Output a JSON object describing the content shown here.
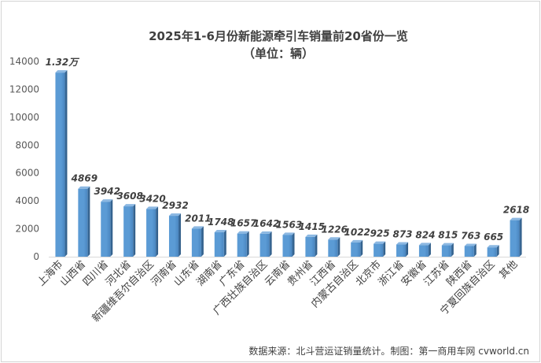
{
  "chart_data": {
    "type": "bar",
    "title": "2025年1-6月份新能源牵引车销量前20省份一览",
    "subtitle": "（单位：辆）",
    "categories": [
      "上海市",
      "山西省",
      "四川省",
      "河北省",
      "新疆维吾尔自治区",
      "河南省",
      "山东省",
      "湖南省",
      "广东省",
      "广西壮族自治区",
      "云南省",
      "贵州省",
      "江西省",
      "内蒙古自治区",
      "北京市",
      "浙江省",
      "安徽省",
      "江苏省",
      "陕西省",
      "宁夏回族自治区",
      "其他"
    ],
    "values": [
      13200,
      4869,
      3942,
      3608,
      3420,
      2932,
      2011,
      1748,
      1657,
      1642,
      1563,
      1415,
      1226,
      1022,
      925,
      873,
      824,
      815,
      763,
      665,
      2618
    ],
    "value_labels": [
      "1.32万",
      "4869",
      "3942",
      "3608",
      "3420",
      "2932",
      "2011",
      "1748",
      "1657",
      "1642",
      "1563",
      "1415",
      "1226",
      "1022",
      "925",
      "873",
      "824",
      "815",
      "763",
      "665",
      "2618"
    ],
    "ylim": [
      0,
      14000
    ],
    "yticks": [
      0,
      2000,
      4000,
      6000,
      8000,
      10000,
      12000,
      14000
    ],
    "grid": false,
    "bar_color": "#5B9BD5",
    "source_note": "数据来源：北斗营运证销量统计。制图：第一商用车网 cvworld.cn"
  }
}
